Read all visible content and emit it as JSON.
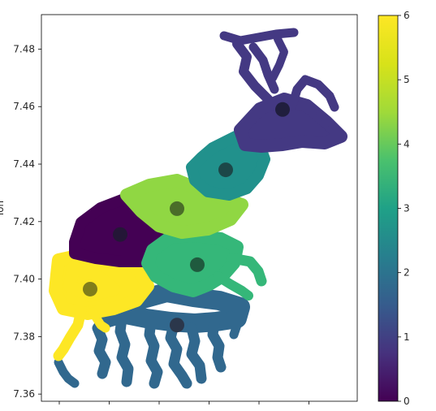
{
  "chart_data": {
    "type": "scatter",
    "title": "",
    "xlabel": "",
    "ylabel": "lon",
    "ylim": [
      7.3575,
      7.492
    ],
    "yticks": [
      7.36,
      7.38,
      7.4,
      7.42,
      7.44,
      7.46,
      7.48
    ],
    "ytick_labels": [
      "7.36",
      "7.38",
      "7.40",
      "7.42",
      "7.44",
      "7.46",
      "7.48"
    ],
    "xtick_count": 6,
    "grid": false,
    "colormap": "viridis",
    "colorbar": {
      "min": 0,
      "max": 6,
      "ticks": [
        0,
        1,
        2,
        3,
        4,
        5,
        6
      ],
      "tick_labels": [
        "0",
        "1",
        "2",
        "3",
        "4",
        "5",
        "6"
      ]
    },
    "cluster_colors": [
      "#440154",
      "#443983",
      "#31688e",
      "#21918c",
      "#35b779",
      "#90d743",
      "#fde725"
    ],
    "clusters": [
      {
        "label": 0,
        "centroid_lon": 7.4155
      },
      {
        "label": 1,
        "centroid_lon": 7.459
      },
      {
        "label": 2,
        "centroid_lon": 7.384
      },
      {
        "label": 3,
        "centroid_lon": 7.438
      },
      {
        "label": 4,
        "centroid_lon": 7.405
      },
      {
        "label": 5,
        "centroid_lon": 7.4245
      },
      {
        "label": 6,
        "centroid_lon": 7.3965
      }
    ]
  }
}
